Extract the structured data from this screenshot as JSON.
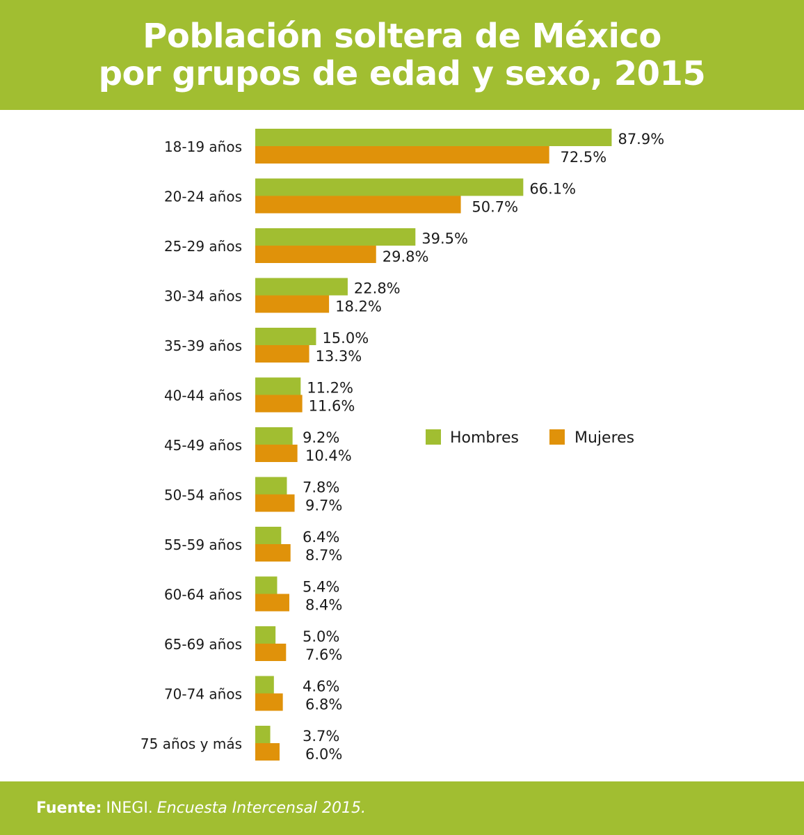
{
  "header": {
    "title_line1": "Población soltera de México",
    "title_line2": "por grupos de edad y sexo, 2015"
  },
  "colors": {
    "brand_green": "#a1be31",
    "hombres": "#a1be31",
    "mujeres": "#e0920a"
  },
  "chart_data": {
    "type": "bar",
    "orientation": "horizontal",
    "title": "Población soltera de México por grupos de edad y sexo, 2015",
    "categories": [
      "18-19 años",
      "20-24 años",
      "25-29 años",
      "30-34 años",
      "35-39 años",
      "40-44 años",
      "45-49 años",
      "50-54 años",
      "55-59 años",
      "60-64 años",
      "65-69 años",
      "70-74 años",
      "75 años y más"
    ],
    "series": [
      {
        "name": "Hombres",
        "color": "#a1be31",
        "values": [
          87.9,
          66.1,
          39.5,
          22.8,
          15.0,
          11.2,
          9.2,
          7.8,
          6.4,
          5.4,
          5.0,
          4.6,
          3.7
        ]
      },
      {
        "name": "Mujeres",
        "color": "#e0920a",
        "values": [
          72.5,
          50.7,
          29.8,
          18.2,
          13.3,
          11.6,
          10.4,
          9.7,
          8.7,
          8.4,
          7.6,
          6.8,
          6.0
        ]
      }
    ],
    "labels": {
      "Hombres": [
        "87.9%",
        "66.1%",
        "39.5%",
        "22.8%",
        "15.0%",
        "11.2%",
        "9.2%",
        "7.8%",
        "6.4%",
        "5.4%",
        "5.0%",
        "4.6%",
        "3.7%"
      ],
      "Mujeres": [
        "72.5%",
        "50.7%",
        "29.8%",
        "18.2%",
        "13.3%",
        "11.6%",
        "10.4%",
        "9.7%",
        "8.7%",
        "8.4%",
        "7.6%",
        "6.8%",
        "6.0%"
      ]
    },
    "xlabel": "",
    "ylabel": "",
    "xlim": [
      0,
      100
    ],
    "grid": false,
    "legend": {
      "position": "right-middle",
      "items": [
        "Hombres",
        "Mujeres"
      ]
    }
  },
  "footer": {
    "label": "Fuente:",
    "source": "INEGI.",
    "publication": "Encuesta Intercensal 2015."
  }
}
